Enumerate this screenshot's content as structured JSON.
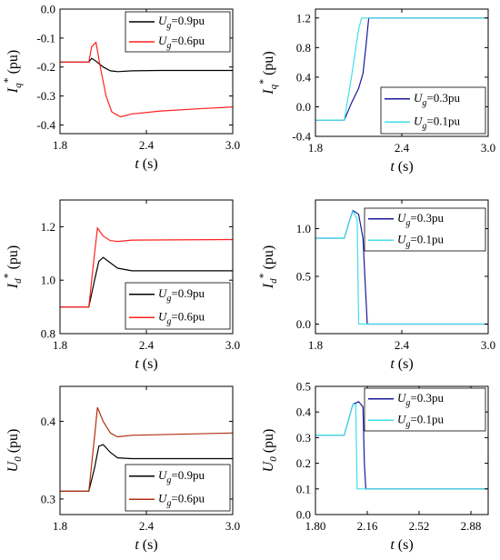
{
  "chart_data": [
    {
      "type": "line",
      "xlabel": "t (s)",
      "ylabel": "Iq* (pu)",
      "xlim": [
        1.8,
        3.0
      ],
      "ylim": [
        -0.43,
        0.0
      ],
      "xticks": [
        "1.8",
        "2.4",
        "3.0"
      ],
      "yticks": [
        "0.0",
        "-0.1",
        "-0.2",
        "-0.3",
        "-0.4"
      ],
      "legend": "top-right",
      "series": [
        {
          "name": "Ug=0.9pu",
          "color": "#000000",
          "x": [
            1.8,
            2.0,
            2.02,
            2.05,
            2.1,
            2.15,
            2.2,
            2.3,
            2.5,
            3.0
          ],
          "y": [
            -0.183,
            -0.183,
            -0.17,
            -0.18,
            -0.2,
            -0.213,
            -0.216,
            -0.213,
            -0.212,
            -0.212
          ]
        },
        {
          "name": "Ug=0.6pu",
          "color": "#ff2020",
          "x": [
            1.8,
            2.0,
            2.02,
            2.05,
            2.08,
            2.12,
            2.16,
            2.22,
            2.3,
            2.5,
            2.8,
            3.0
          ],
          "y": [
            -0.183,
            -0.183,
            -0.13,
            -0.115,
            -0.2,
            -0.3,
            -0.355,
            -0.372,
            -0.362,
            -0.352,
            -0.343,
            -0.338
          ]
        }
      ]
    },
    {
      "type": "line",
      "xlabel": "t (s)",
      "ylabel": "Iq* (pu)",
      "xlim": [
        1.8,
        3.0
      ],
      "ylim": [
        -0.4,
        1.32
      ],
      "xticks": [
        "1.8",
        "2.4",
        "3.0"
      ],
      "yticks": [
        "1.2",
        "0.8",
        "0.4",
        "0.0",
        "-0.4"
      ],
      "legend": "bottom-right",
      "series": [
        {
          "name": "Ug=0.3pu",
          "color": "#1a1a9a",
          "x": [
            1.8,
            2.0,
            2.05,
            2.1,
            2.13,
            2.15,
            2.17,
            3.0
          ],
          "y": [
            -0.18,
            -0.18,
            0.05,
            0.25,
            0.45,
            0.8,
            1.2,
            1.2
          ]
        },
        {
          "name": "Ug=0.1pu",
          "color": "#40e0e8",
          "x": [
            1.8,
            2.0,
            2.05,
            2.1,
            2.12,
            3.0
          ],
          "y": [
            -0.18,
            -0.18,
            0.4,
            1.05,
            1.2,
            1.2
          ]
        }
      ]
    },
    {
      "type": "line",
      "xlabel": "t (s)",
      "ylabel": "Id* (pu)",
      "xlim": [
        1.8,
        3.0
      ],
      "ylim": [
        0.8,
        1.3
      ],
      "xticks": [
        "1.8",
        "2.4",
        "3.0"
      ],
      "yticks": [
        "1.2",
        "1.0",
        "0.8"
      ],
      "legend": "bottom-right",
      "series": [
        {
          "name": "Ug=0.9pu",
          "color": "#000000",
          "x": [
            1.8,
            2.0,
            2.04,
            2.07,
            2.1,
            2.15,
            2.2,
            2.3,
            3.0
          ],
          "y": [
            0.9,
            0.9,
            1.0,
            1.07,
            1.085,
            1.065,
            1.045,
            1.035,
            1.035
          ]
        },
        {
          "name": "Ug=0.6pu",
          "color": "#ff2020",
          "x": [
            1.8,
            2.0,
            2.04,
            2.06,
            2.1,
            2.15,
            2.2,
            2.3,
            3.0
          ],
          "y": [
            0.9,
            0.9,
            1.1,
            1.195,
            1.165,
            1.148,
            1.145,
            1.15,
            1.152
          ]
        }
      ]
    },
    {
      "type": "line",
      "xlabel": "t (s)",
      "ylabel": "Id* (pu)",
      "xlim": [
        1.8,
        3.0
      ],
      "ylim": [
        -0.1,
        1.3
      ],
      "xticks": [
        "1.8",
        "2.4",
        "3.0"
      ],
      "yticks": [
        "1.0",
        "0.5",
        "0.0"
      ],
      "legend": "top-right",
      "series": [
        {
          "name": "Ug=0.3pu",
          "color": "#1a1a9a",
          "x": [
            1.8,
            2.0,
            2.03,
            2.06,
            2.1,
            2.13,
            2.15,
            2.16,
            3.0
          ],
          "y": [
            0.9,
            0.9,
            1.05,
            1.19,
            1.15,
            0.9,
            0.3,
            0.0,
            0.0
          ]
        },
        {
          "name": "Ug=0.1pu",
          "color": "#40e0e8",
          "x": [
            1.8,
            2.0,
            2.03,
            2.06,
            2.09,
            2.1,
            3.0
          ],
          "y": [
            0.9,
            0.9,
            1.05,
            1.18,
            1.1,
            0.0,
            0.0
          ]
        }
      ]
    },
    {
      "type": "line",
      "xlabel": "t (s)",
      "ylabel": "U0 (pu)",
      "xlim": [
        1.8,
        3.0
      ],
      "ylim": [
        0.28,
        0.445
      ],
      "xticks": [
        "1.8",
        "2.4",
        "3.0"
      ],
      "yticks": [
        "0.4",
        "0.3"
      ],
      "legend": "bottom-right",
      "series": [
        {
          "name": "Ug=0.9pu",
          "color": "#000000",
          "x": [
            1.8,
            2.0,
            2.04,
            2.07,
            2.1,
            2.15,
            2.2,
            2.3,
            3.0
          ],
          "y": [
            0.31,
            0.31,
            0.34,
            0.368,
            0.37,
            0.36,
            0.353,
            0.352,
            0.352
          ]
        },
        {
          "name": "Ug=0.6pu",
          "color": "#b03010",
          "x": [
            1.8,
            2.0,
            2.04,
            2.06,
            2.1,
            2.15,
            2.2,
            2.3,
            3.0
          ],
          "y": [
            0.31,
            0.31,
            0.38,
            0.418,
            0.4,
            0.385,
            0.38,
            0.382,
            0.385
          ]
        }
      ]
    },
    {
      "type": "line",
      "xlabel": "t (s)",
      "ylabel": "U0 (pu)",
      "xlim": [
        1.8,
        3.0
      ],
      "ylim": [
        0.0,
        0.5
      ],
      "xticks": [
        "1.80",
        "2.16",
        "2.52",
        "2.88"
      ],
      "yticks": [
        "0.5",
        "0.4",
        "0.3",
        "0.2",
        "0.1",
        "0.0"
      ],
      "legend": "top-right",
      "series": [
        {
          "name": "Ug=0.3pu",
          "color": "#1a1a9a",
          "x": [
            1.8,
            2.0,
            2.03,
            2.06,
            2.1,
            2.13,
            2.14,
            2.15,
            3.0
          ],
          "y": [
            0.31,
            0.31,
            0.37,
            0.43,
            0.44,
            0.42,
            0.2,
            0.1,
            0.1
          ]
        },
        {
          "name": "Ug=0.1pu",
          "color": "#40e0e8",
          "x": [
            1.8,
            2.0,
            2.03,
            2.06,
            2.08,
            2.09,
            3.0
          ],
          "y": [
            0.31,
            0.31,
            0.37,
            0.43,
            0.43,
            0.1,
            0.1
          ]
        }
      ]
    }
  ]
}
